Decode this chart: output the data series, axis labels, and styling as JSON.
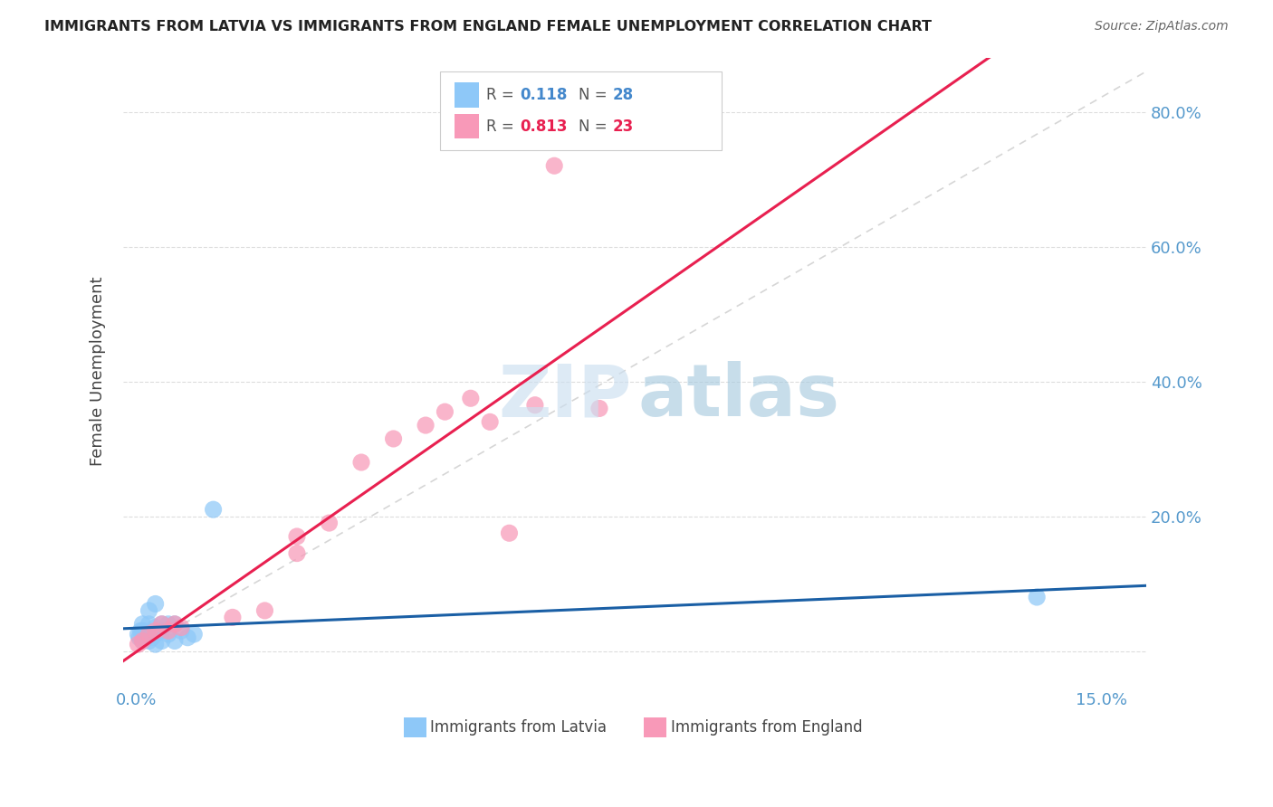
{
  "title": "IMMIGRANTS FROM LATVIA VS IMMIGRANTS FROM ENGLAND FEMALE UNEMPLOYMENT CORRELATION CHART",
  "source": "Source: ZipAtlas.com",
  "ylabel": "Female Unemployment",
  "xlim_min": -0.002,
  "xlim_max": 0.157,
  "ylim_min": -0.05,
  "ylim_max": 0.88,
  "color_latvia": "#8EC8F8",
  "color_england": "#F899B8",
  "trendline_latvia_color": "#1A5FA5",
  "trendline_england_color": "#E82050",
  "reference_line_color": "#CCCCCC",
  "legend_R_latvia": "0.118",
  "legend_N_latvia": "28",
  "legend_R_england": "0.813",
  "legend_N_england": "23",
  "legend_label_latvia": "Immigrants from Latvia",
  "legend_label_england": "Immigrants from England",
  "R_color_latvia": "#4488CC",
  "R_color_england": "#E82050",
  "axis_color": "#5599CC",
  "watermark_zip_color": "#CCDFF0",
  "watermark_atlas_color": "#AACCE0",
  "latvia_x": [
    0.0003,
    0.0005,
    0.0007,
    0.001,
    0.001,
    0.001,
    0.0012,
    0.0015,
    0.002,
    0.002,
    0.002,
    0.0025,
    0.003,
    0.003,
    0.003,
    0.003,
    0.004,
    0.004,
    0.004,
    0.005,
    0.005,
    0.006,
    0.006,
    0.007,
    0.008,
    0.009,
    0.012,
    0.14
  ],
  "latvia_y": [
    0.025,
    0.02,
    0.03,
    0.015,
    0.03,
    0.04,
    0.02,
    0.025,
    0.015,
    0.04,
    0.06,
    0.02,
    0.01,
    0.025,
    0.035,
    0.07,
    0.015,
    0.03,
    0.04,
    0.025,
    0.04,
    0.015,
    0.04,
    0.03,
    0.02,
    0.025,
    0.21,
    0.08
  ],
  "england_x": [
    0.0003,
    0.001,
    0.002,
    0.003,
    0.004,
    0.005,
    0.006,
    0.007,
    0.015,
    0.02,
    0.025,
    0.025,
    0.03,
    0.035,
    0.04,
    0.045,
    0.048,
    0.052,
    0.055,
    0.058,
    0.062,
    0.065,
    0.072
  ],
  "england_y": [
    0.01,
    0.015,
    0.025,
    0.03,
    0.04,
    0.03,
    0.04,
    0.035,
    0.05,
    0.06,
    0.145,
    0.17,
    0.19,
    0.28,
    0.315,
    0.335,
    0.355,
    0.375,
    0.34,
    0.175,
    0.365,
    0.72,
    0.36
  ]
}
